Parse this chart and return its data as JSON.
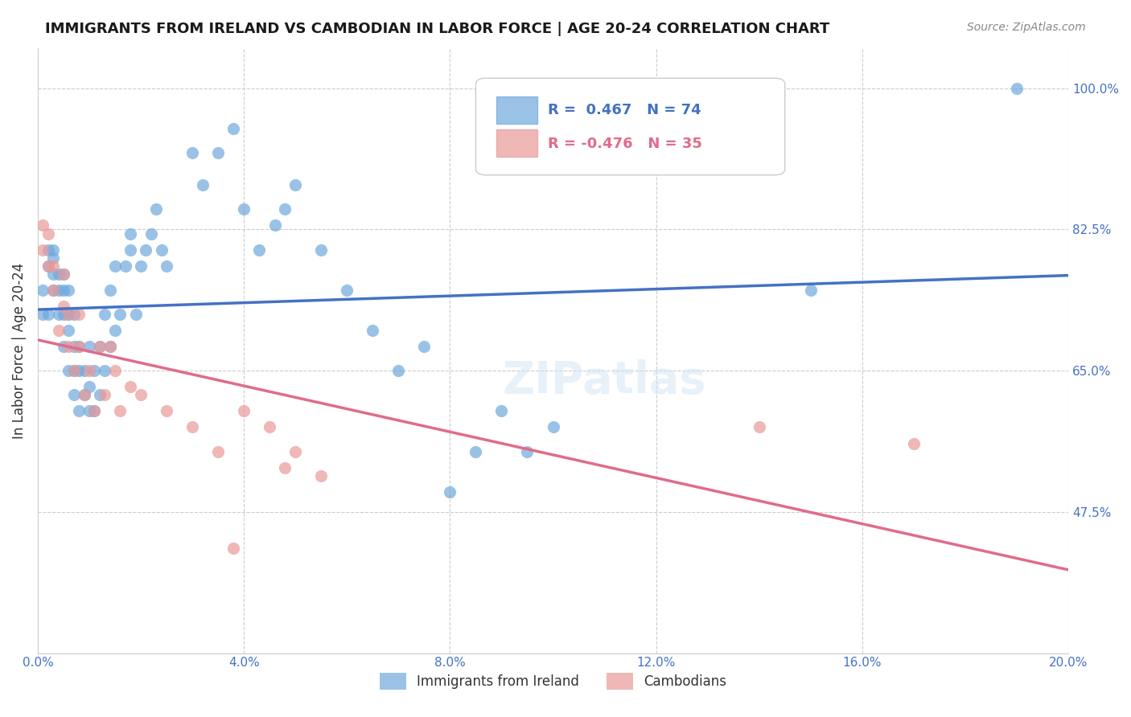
{
  "title": "IMMIGRANTS FROM IRELAND VS CAMBODIAN IN LABOR FORCE | AGE 20-24 CORRELATION CHART",
  "source": "Source: ZipAtlas.com",
  "ylabel": "In Labor Force | Age 20-24",
  "xlabel_bottom_left": "0.0%",
  "xlabel_bottom_right": "20.0%",
  "y_ticks": [
    0.475,
    0.65,
    0.825,
    1.0
  ],
  "y_tick_labels": [
    "47.5%",
    "65.0%",
    "82.5%",
    "100.0%"
  ],
  "x_range": [
    0.0,
    0.2
  ],
  "y_range": [
    0.3,
    1.05
  ],
  "ireland_R": 0.467,
  "ireland_N": 74,
  "cambodian_R": -0.476,
  "cambodian_N": 35,
  "ireland_color": "#6fa8dc",
  "cambodian_color": "#ea9999",
  "ireland_line_color": "#4472c4",
  "cambodian_line_color": "#e06c8a",
  "watermark": "ZIPatlas",
  "ireland_points_x": [
    0.001,
    0.001,
    0.002,
    0.002,
    0.002,
    0.003,
    0.003,
    0.003,
    0.003,
    0.004,
    0.004,
    0.004,
    0.005,
    0.005,
    0.005,
    0.005,
    0.006,
    0.006,
    0.006,
    0.006,
    0.007,
    0.007,
    0.007,
    0.007,
    0.008,
    0.008,
    0.008,
    0.009,
    0.009,
    0.01,
    0.01,
    0.01,
    0.011,
    0.011,
    0.012,
    0.012,
    0.013,
    0.013,
    0.014,
    0.014,
    0.015,
    0.015,
    0.016,
    0.017,
    0.018,
    0.018,
    0.019,
    0.02,
    0.021,
    0.022,
    0.023,
    0.024,
    0.025,
    0.03,
    0.032,
    0.035,
    0.038,
    0.04,
    0.043,
    0.046,
    0.048,
    0.05,
    0.055,
    0.06,
    0.065,
    0.07,
    0.075,
    0.08,
    0.085,
    0.09,
    0.095,
    0.1,
    0.15,
    0.19
  ],
  "ireland_points_y": [
    0.72,
    0.75,
    0.78,
    0.8,
    0.72,
    0.75,
    0.77,
    0.79,
    0.8,
    0.72,
    0.75,
    0.77,
    0.68,
    0.72,
    0.75,
    0.77,
    0.65,
    0.7,
    0.72,
    0.75,
    0.62,
    0.65,
    0.68,
    0.72,
    0.6,
    0.65,
    0.68,
    0.62,
    0.65,
    0.6,
    0.63,
    0.68,
    0.6,
    0.65,
    0.62,
    0.68,
    0.65,
    0.72,
    0.68,
    0.75,
    0.7,
    0.78,
    0.72,
    0.78,
    0.8,
    0.82,
    0.72,
    0.78,
    0.8,
    0.82,
    0.85,
    0.8,
    0.78,
    0.92,
    0.88,
    0.92,
    0.95,
    0.85,
    0.8,
    0.83,
    0.85,
    0.88,
    0.8,
    0.75,
    0.7,
    0.65,
    0.68,
    0.5,
    0.55,
    0.6,
    0.55,
    0.58,
    0.75,
    1.0
  ],
  "cambodian_points_x": [
    0.001,
    0.001,
    0.002,
    0.002,
    0.003,
    0.003,
    0.004,
    0.005,
    0.005,
    0.006,
    0.006,
    0.007,
    0.008,
    0.008,
    0.009,
    0.01,
    0.011,
    0.012,
    0.013,
    0.014,
    0.015,
    0.016,
    0.018,
    0.02,
    0.025,
    0.03,
    0.035,
    0.038,
    0.04,
    0.045,
    0.048,
    0.05,
    0.055,
    0.14,
    0.17
  ],
  "cambodian_points_y": [
    0.8,
    0.83,
    0.78,
    0.82,
    0.75,
    0.78,
    0.7,
    0.73,
    0.77,
    0.68,
    0.72,
    0.65,
    0.68,
    0.72,
    0.62,
    0.65,
    0.6,
    0.68,
    0.62,
    0.68,
    0.65,
    0.6,
    0.63,
    0.62,
    0.6,
    0.58,
    0.55,
    0.43,
    0.6,
    0.58,
    0.53,
    0.55,
    0.52,
    0.58,
    0.56
  ]
}
